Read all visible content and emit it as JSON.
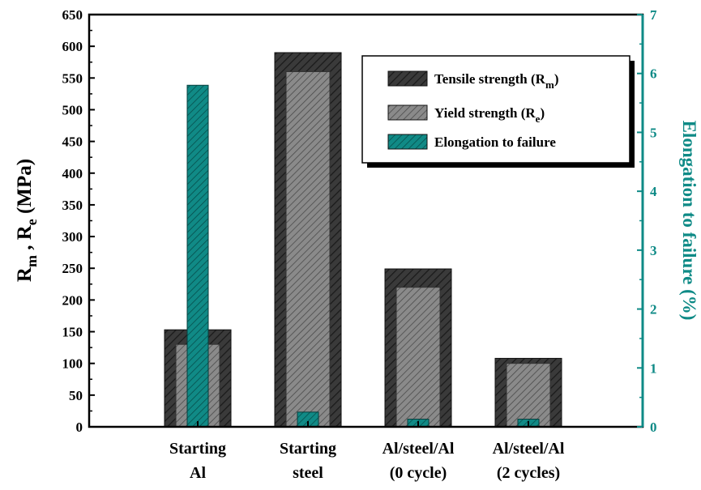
{
  "chart_data": {
    "type": "bar",
    "categories": [
      [
        "Starting",
        "Al"
      ],
      [
        "Starting",
        "steel"
      ],
      [
        "Al/steel/Al",
        "(0 cycle)"
      ],
      [
        "Al/steel/Al",
        "(2 cycles)"
      ]
    ],
    "series": [
      {
        "name": "Tensile strength (R",
        "sub": "m",
        "suffix": ")",
        "axis": "left",
        "values": [
          153,
          590,
          249,
          108
        ]
      },
      {
        "name": "Yield strength (R",
        "sub": "e",
        "suffix": ")",
        "axis": "left",
        "values": [
          130,
          560,
          220,
          100
        ]
      },
      {
        "name": "Elongation to failure",
        "sub": "",
        "suffix": "",
        "axis": "right",
        "values": [
          5.8,
          0.25,
          0.13,
          0.13
        ]
      }
    ],
    "y_left": {
      "label": {
        "p1": "R",
        "s1": "m",
        "p2": " , R",
        "s2": "e",
        "p3": " (MPa)"
      },
      "ylim": [
        0,
        650
      ],
      "ticks": [
        0,
        50,
        100,
        150,
        200,
        250,
        300,
        350,
        400,
        450,
        500,
        550,
        600,
        650
      ]
    },
    "y_right": {
      "label": "Elongation to failure (%)",
      "ylim": [
        0,
        7
      ],
      "ticks": [
        0,
        1,
        2,
        3,
        4,
        5,
        6,
        7
      ]
    },
    "legend_position": "top-right",
    "colors": {
      "tensile": "#3a3a3a",
      "yield": "#7d7d7d",
      "elongation": "#0e7f7c",
      "right_axis": "#0e8a86",
      "axis": "#000000"
    }
  }
}
